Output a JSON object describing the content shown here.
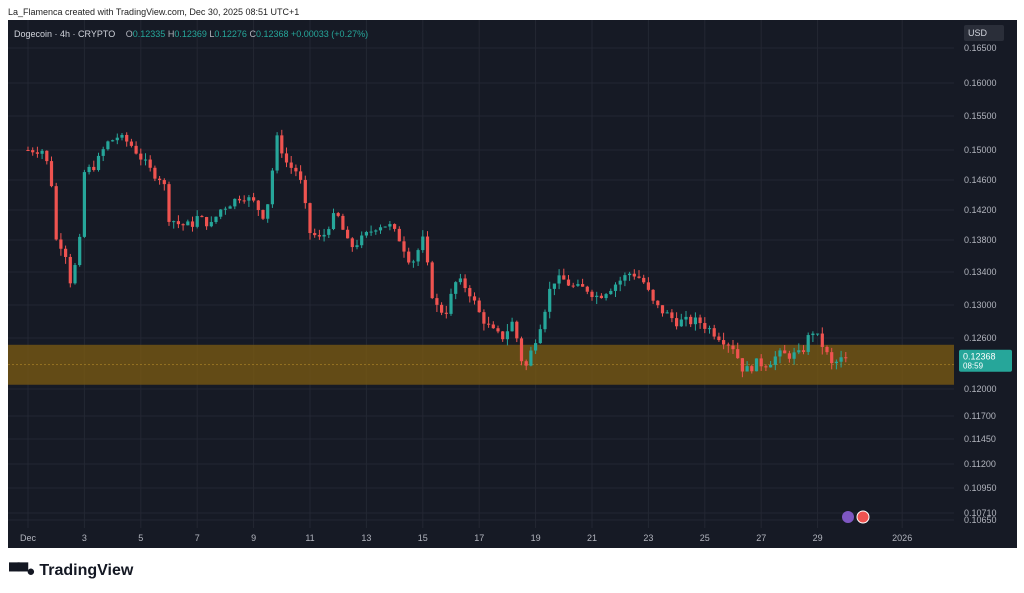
{
  "header": {
    "caption": "La_Flamenca created with TradingView.com, Dec 30, 2025 08:51 UTC+1"
  },
  "legend": {
    "symbol": "Dogecoin · 4h · CRYPTO",
    "open_label": "O",
    "open": "0.12335",
    "high_label": "H",
    "high": "0.12369",
    "low_label": "L",
    "low": "0.12276",
    "close_label": "C",
    "close": "0.12368",
    "change": "+0.00033 (+0.27%)"
  },
  "currency": "USD",
  "price_tag": {
    "price": "0.12368",
    "countdown": "08:59"
  },
  "footer": {
    "brand": "TradingView"
  },
  "colors": {
    "up": "#26a69a",
    "down": "#ef5350",
    "zone": "#7a5a12",
    "background": "#161a25"
  },
  "chart_data": {
    "type": "candlestick",
    "y_ticks": [
      0.1065,
      0.1071,
      0.1095,
      0.112,
      0.1145,
      0.117,
      0.12,
      0.126,
      0.13,
      0.134,
      0.138,
      0.142,
      0.146,
      0.15,
      0.155,
      0.16,
      0.165
    ],
    "y_tick_labels": [
      "0.10650",
      "0.10710",
      "0.10950",
      "0.11200",
      "0.11450",
      "0.11700",
      "0.12000",
      "0.12600",
      "0.13000",
      "0.13400",
      "0.13800",
      "0.14200",
      "0.14600",
      "0.15000",
      "0.15500",
      "0.16000",
      "0.16500"
    ],
    "x_ticks": [
      {
        "day": 1,
        "label": "Dec"
      },
      {
        "day": 3,
        "label": "3"
      },
      {
        "day": 5,
        "label": "5"
      },
      {
        "day": 7,
        "label": "7"
      },
      {
        "day": 9,
        "label": "9"
      },
      {
        "day": 11,
        "label": "11"
      },
      {
        "day": 13,
        "label": "13"
      },
      {
        "day": 15,
        "label": "15"
      },
      {
        "day": 17,
        "label": "17"
      },
      {
        "day": 19,
        "label": "19"
      },
      {
        "day": 21,
        "label": "21"
      },
      {
        "day": 23,
        "label": "23"
      },
      {
        "day": 25,
        "label": "25"
      },
      {
        "day": 27,
        "label": "27"
      },
      {
        "day": 29,
        "label": "29"
      },
      {
        "day": 32,
        "label": "2026"
      }
    ],
    "support_zone": {
      "low": 0.1205,
      "high": 0.1252
    },
    "last_price": 0.12368,
    "close_path": [
      [
        1,
        0.15
      ],
      [
        1.5,
        0.15
      ],
      [
        1.8,
        0.147
      ],
      [
        2,
        0.138
      ],
      [
        2.3,
        0.137
      ],
      [
        2.5,
        0.133
      ],
      [
        2.8,
        0.136
      ],
      [
        3,
        0.147
      ],
      [
        3.4,
        0.148
      ],
      [
        3.8,
        0.151
      ],
      [
        4.2,
        0.152
      ],
      [
        4.6,
        0.151
      ],
      [
        5,
        0.149
      ],
      [
        5.4,
        0.147
      ],
      [
        5.8,
        0.146
      ],
      [
        6,
        0.141
      ],
      [
        6.4,
        0.14
      ],
      [
        6.8,
        0.14
      ],
      [
        7,
        0.141
      ],
      [
        7.5,
        0.14
      ],
      [
        7.8,
        0.142
      ],
      [
        8.2,
        0.143
      ],
      [
        8.6,
        0.144
      ],
      [
        9,
        0.143
      ],
      [
        9.4,
        0.141
      ],
      [
        9.6,
        0.145
      ],
      [
        9.8,
        0.152
      ],
      [
        10.2,
        0.148
      ],
      [
        10.6,
        0.147
      ],
      [
        11,
        0.139
      ],
      [
        11.4,
        0.138
      ],
      [
        11.8,
        0.141
      ],
      [
        12,
        0.141
      ],
      [
        12.4,
        0.137
      ],
      [
        12.8,
        0.138
      ],
      [
        13.4,
        0.14
      ],
      [
        13.8,
        0.14
      ],
      [
        14.2,
        0.138
      ],
      [
        14.6,
        0.135
      ],
      [
        15,
        0.138
      ],
      [
        15.4,
        0.13
      ],
      [
        15.8,
        0.129
      ],
      [
        16.2,
        0.133
      ],
      [
        16.6,
        0.132
      ],
      [
        17,
        0.129
      ],
      [
        17.4,
        0.127
      ],
      [
        17.8,
        0.126
      ],
      [
        18.2,
        0.128
      ],
      [
        18.6,
        0.122
      ],
      [
        18.9,
        0.125
      ],
      [
        19.2,
        0.128
      ],
      [
        19.6,
        0.133
      ],
      [
        20,
        0.133
      ],
      [
        20.4,
        0.132
      ],
      [
        20.8,
        0.132
      ],
      [
        21.2,
        0.131
      ],
      [
        21.6,
        0.132
      ],
      [
        22,
        0.133
      ],
      [
        22.4,
        0.134
      ],
      [
        22.8,
        0.133
      ],
      [
        23.2,
        0.13
      ],
      [
        23.6,
        0.129
      ],
      [
        24,
        0.128
      ],
      [
        24.4,
        0.128
      ],
      [
        24.8,
        0.128
      ],
      [
        25.2,
        0.127
      ],
      [
        25.6,
        0.126
      ],
      [
        26,
        0.125
      ],
      [
        26.4,
        0.122
      ],
      [
        26.8,
        0.123
      ],
      [
        27.2,
        0.123
      ],
      [
        27.6,
        0.124
      ],
      [
        28,
        0.124
      ],
      [
        28.4,
        0.124
      ],
      [
        28.8,
        0.127
      ],
      [
        29.2,
        0.125
      ],
      [
        29.5,
        0.1228
      ],
      [
        29.8,
        0.1234
      ],
      [
        30.1,
        0.12368
      ]
    ]
  }
}
